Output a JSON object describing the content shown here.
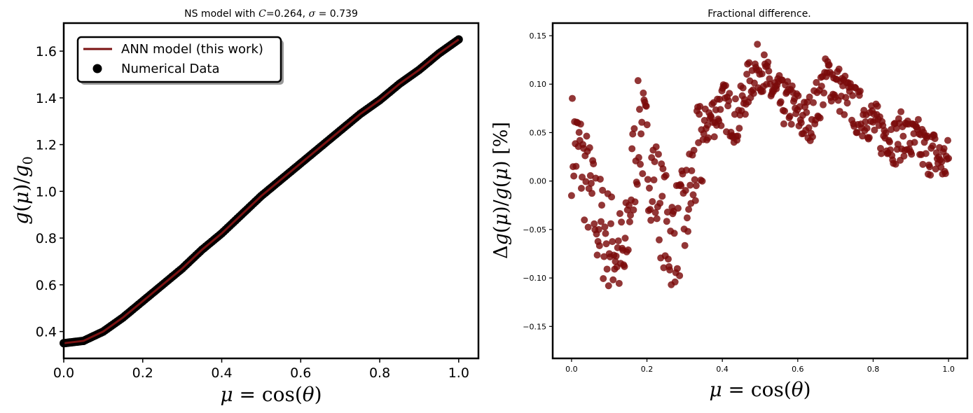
{
  "chart_data": [
    {
      "type": "line+scatter",
      "title": "NS model with C=0.264, σ = 0.739",
      "xlabel": "μ = cos(θ)",
      "ylabel": "g(μ)/g₀",
      "xlim": [
        0.0,
        1.05
      ],
      "ylim": [
        0.285,
        1.72
      ],
      "xticks": [
        0.0,
        0.2,
        0.4,
        0.6,
        0.8,
        1.0
      ],
      "xtick_labels": [
        "0.0",
        "0.2",
        "0.4",
        "0.6",
        "0.8",
        "1.0"
      ],
      "yticks": [
        0.4,
        0.6,
        0.8,
        1.0,
        1.2,
        1.4,
        1.6
      ],
      "ytick_labels": [
        "0.4",
        "0.6",
        "0.8",
        "1.0",
        "1.2",
        "1.4",
        "1.6"
      ],
      "grid": false,
      "legend": {
        "placement": "top-left",
        "entries": [
          "ANN model (this work)",
          "Numerical Data"
        ]
      },
      "series": [
        {
          "name": "ANN model (this work)",
          "kind": "line",
          "color": "#7a1212",
          "x": [
            0.0,
            0.05,
            0.1,
            0.15,
            0.2,
            0.25,
            0.3,
            0.35,
            0.4,
            0.45,
            0.5,
            0.55,
            0.6,
            0.65,
            0.7,
            0.75,
            0.8,
            0.85,
            0.9,
            0.95,
            1.0
          ],
          "y": [
            0.35,
            0.36,
            0.4,
            0.46,
            0.53,
            0.6,
            0.67,
            0.75,
            0.82,
            0.9,
            0.98,
            1.05,
            1.12,
            1.19,
            1.26,
            1.33,
            1.39,
            1.46,
            1.52,
            1.59,
            1.65
          ]
        },
        {
          "name": "Numerical Data",
          "kind": "scatter",
          "color": "#000000",
          "x": [
            0.0,
            0.05,
            0.1,
            0.15,
            0.2,
            0.25,
            0.3,
            0.35,
            0.4,
            0.45,
            0.5,
            0.55,
            0.6,
            0.65,
            0.7,
            0.75,
            0.8,
            0.85,
            0.9,
            0.95,
            1.0
          ],
          "y": [
            0.35,
            0.36,
            0.4,
            0.46,
            0.53,
            0.6,
            0.67,
            0.75,
            0.82,
            0.9,
            0.98,
            1.05,
            1.12,
            1.19,
            1.26,
            1.33,
            1.39,
            1.46,
            1.52,
            1.59,
            1.65
          ]
        }
      ]
    },
    {
      "type": "scatter",
      "title": "Fractional difference.",
      "xlabel": "μ = cos(θ)",
      "ylabel": "Δg(μ)/g(μ) [%]",
      "xlim": [
        -0.05,
        1.05
      ],
      "ylim": [
        -0.183,
        0.163
      ],
      "xticks": [
        0.0,
        0.2,
        0.4,
        0.6,
        0.8,
        1.0
      ],
      "xtick_labels": [
        "0.0",
        "0.2",
        "0.4",
        "0.6",
        "0.8",
        "1.0"
      ],
      "yticks": [
        -0.15,
        -0.1,
        -0.05,
        0.0,
        0.05,
        0.1,
        0.15
      ],
      "ytick_labels": [
        "−0.15",
        "−0.10",
        "−0.05",
        "0.00",
        "0.05",
        "0.10",
        "0.15"
      ],
      "grid": false,
      "series": [
        {
          "kind": "scatter",
          "color": "#7a0a0a",
          "x": [
            0.0,
            0.02,
            0.04,
            0.06,
            0.08,
            0.1,
            0.12,
            0.14,
            0.16,
            0.18,
            0.2,
            0.22,
            0.24,
            0.26,
            0.28,
            0.3,
            0.32,
            0.34,
            0.36,
            0.38,
            0.4,
            0.42,
            0.44,
            0.46,
            0.48,
            0.5,
            0.52,
            0.54,
            0.56,
            0.58,
            0.6,
            0.62,
            0.64,
            0.66,
            0.68,
            0.7,
            0.72,
            0.74,
            0.76,
            0.78,
            0.8,
            0.82,
            0.84,
            0.86,
            0.88,
            0.9,
            0.92,
            0.94,
            0.96,
            0.98,
            1.0
          ],
          "y": [
            0.04,
            0.03,
            0.0,
            -0.03,
            -0.05,
            -0.06,
            -0.07,
            -0.09,
            0.0,
            0.06,
            0.03,
            0.0,
            -0.03,
            -0.06,
            -0.05,
            -0.04,
            0.0,
            0.03,
            0.06,
            0.07,
            0.08,
            0.07,
            0.06,
            0.09,
            0.11,
            0.12,
            0.1,
            0.09,
            0.08,
            0.08,
            0.07,
            0.06,
            0.07,
            0.09,
            0.11,
            0.1,
            0.09,
            0.08,
            0.07,
            0.07,
            0.06,
            0.05,
            0.05,
            0.04,
            0.05,
            0.04,
            0.04,
            0.03,
            0.03,
            0.02,
            0.02
          ]
        }
      ]
    }
  ]
}
